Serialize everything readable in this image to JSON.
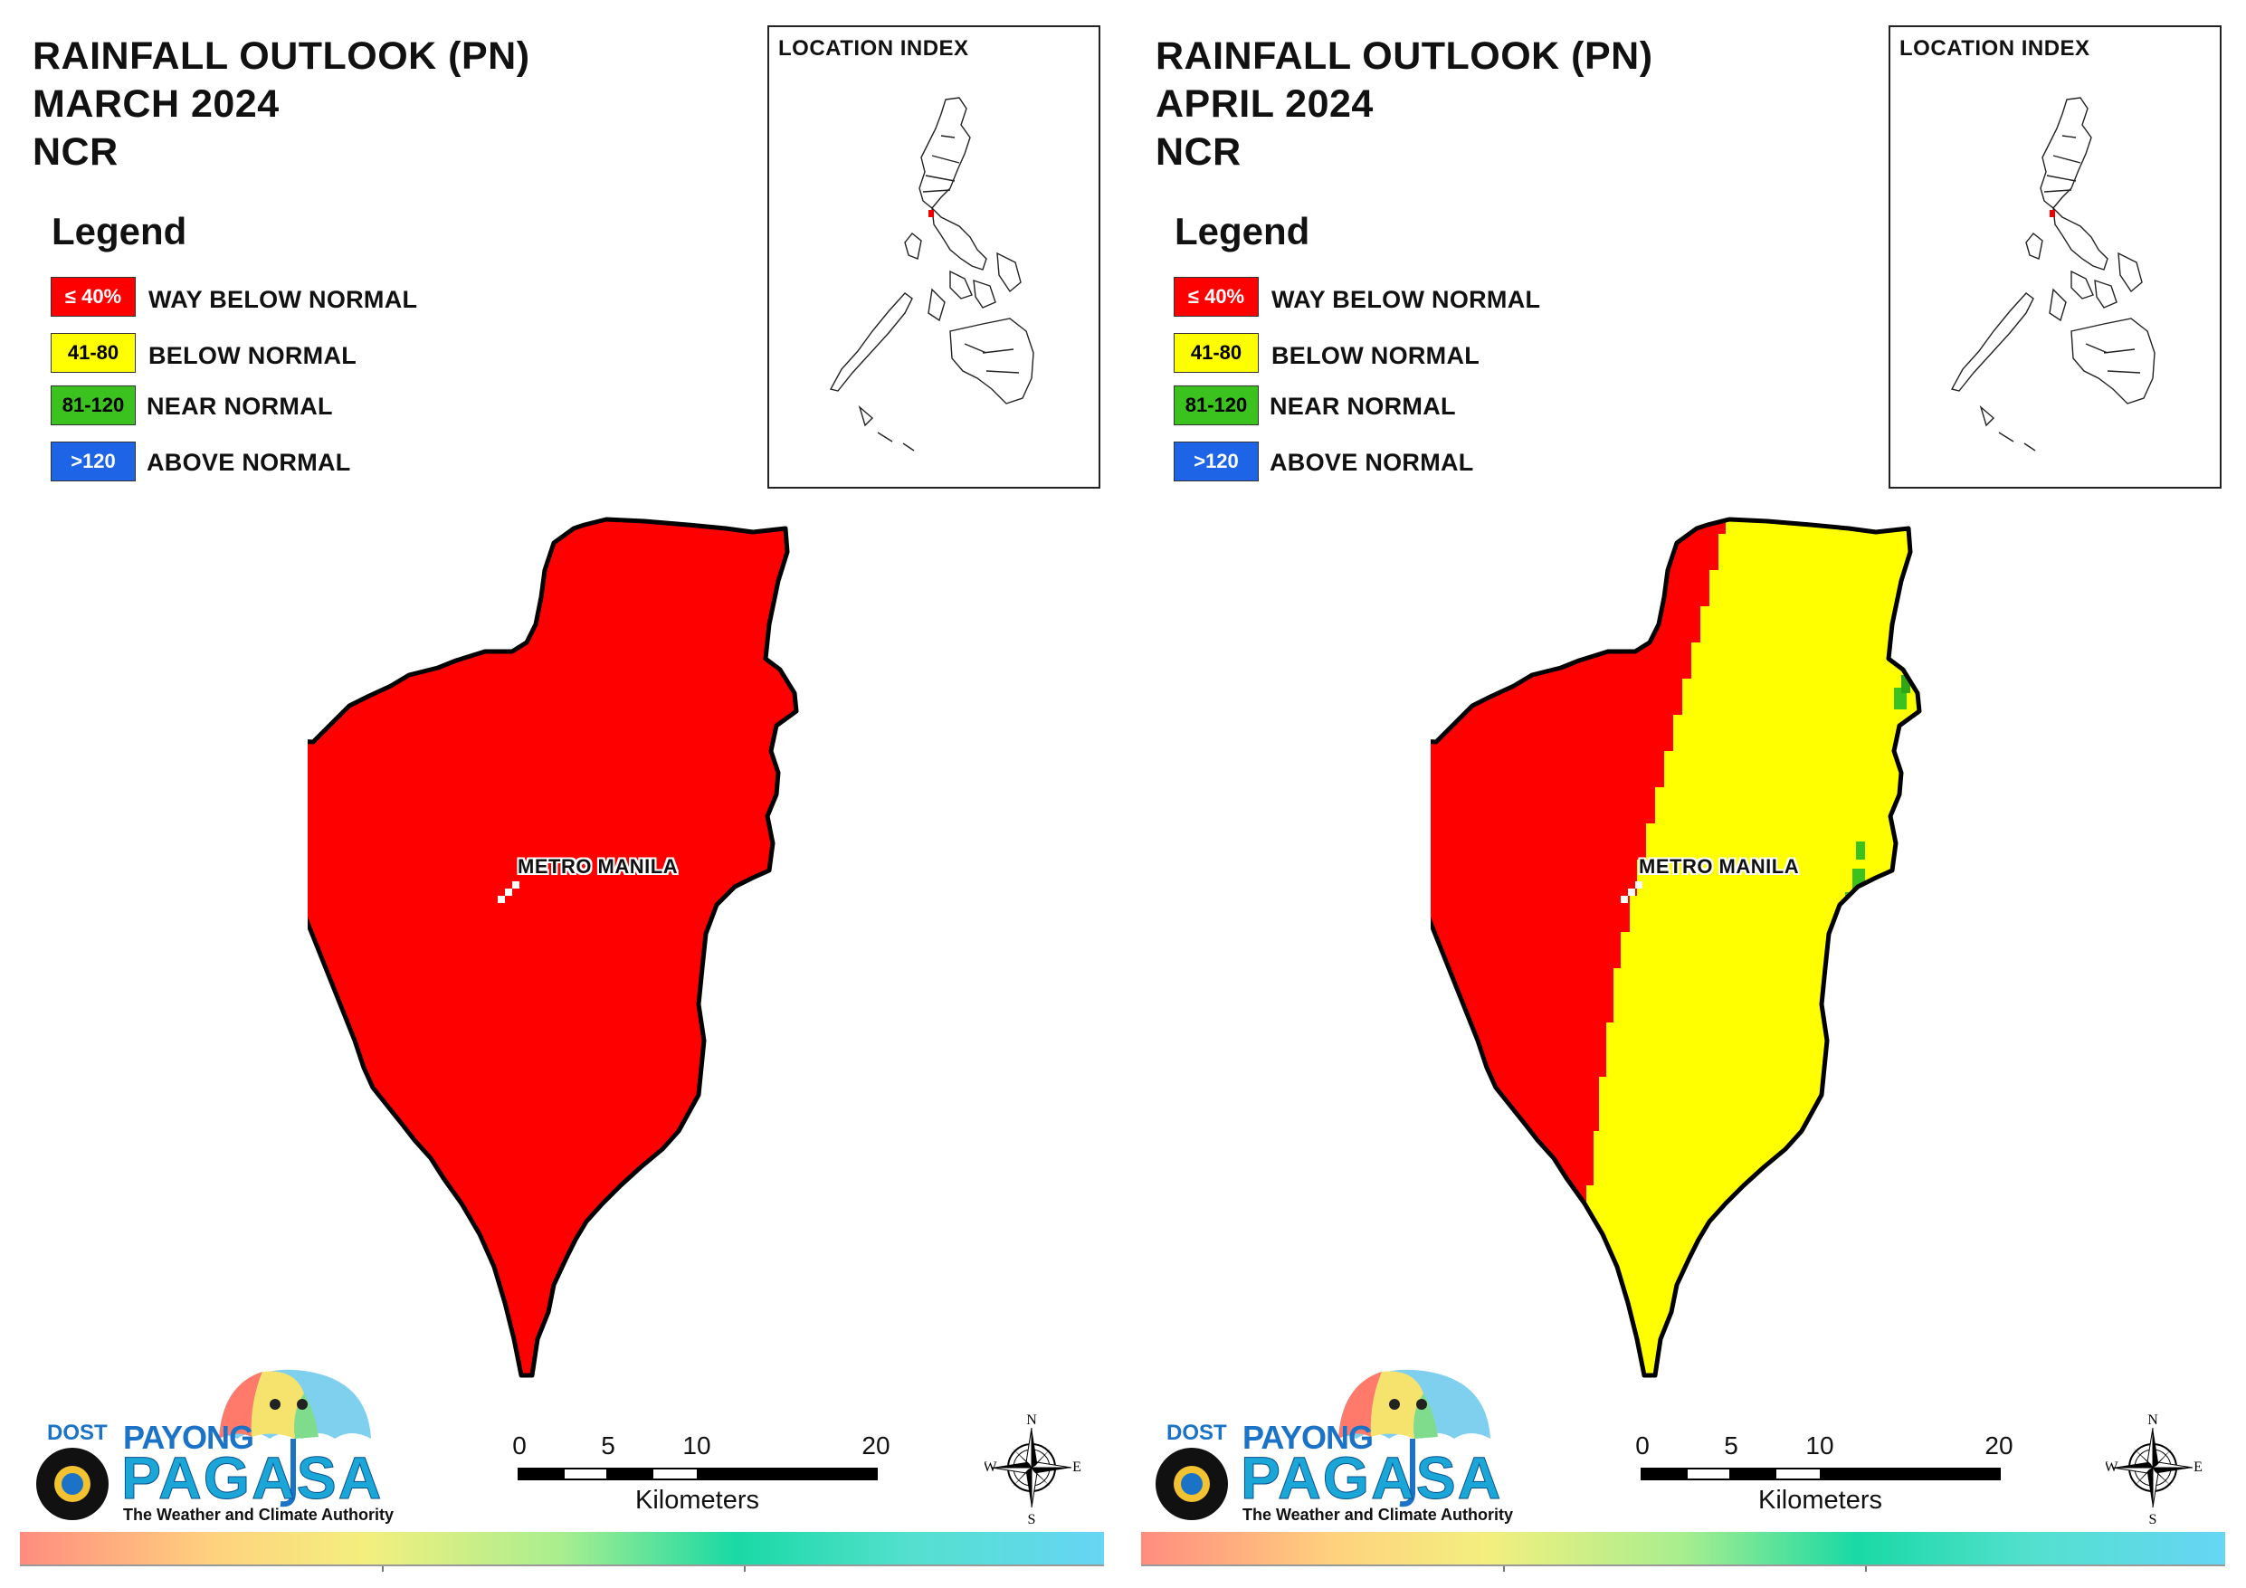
{
  "panels": [
    {
      "title_line1": "RAINFALL OUTLOOK (PN)",
      "title_line2": "MARCH 2024",
      "title_line3": "NCR",
      "legend_title": "Legend",
      "legend": [
        {
          "range": "≤ 40%",
          "label": "WAY BELOW NORMAL",
          "color": "#ff0000",
          "text_color": "#ffffff"
        },
        {
          "range": "41-80",
          "label": "BELOW NORMAL",
          "color": "#ffff00",
          "text_color": "#000000"
        },
        {
          "range": "81-120",
          "label": "NEAR NORMAL",
          "color": "#3cc21e",
          "text_color": "#000000"
        },
        {
          "range": ">120",
          "label": "ABOVE NORMAL",
          "color": "#1e64e6",
          "text_color": "#ffffff"
        }
      ],
      "location_index_title": "LOCATION INDEX",
      "region_label": "METRO MANILA",
      "region_fill": "way below normal",
      "scale_ticks": [
        "0",
        "5",
        "10",
        "20"
      ],
      "scale_unit": "Kilometers",
      "compass": {
        "n": "N",
        "e": "E",
        "s": "S",
        "w": "W"
      },
      "logo": {
        "dost": "DOST",
        "payong": "PAYONG",
        "pagasa": "PAGASA",
        "tagline": "The Weather and Climate Authority"
      }
    },
    {
      "title_line1": "RAINFALL OUTLOOK (PN)",
      "title_line2": "APRIL 2024",
      "title_line3": "NCR",
      "legend_title": "Legend",
      "legend": [
        {
          "range": "≤ 40%",
          "label": "WAY BELOW NORMAL",
          "color": "#ff0000",
          "text_color": "#ffffff"
        },
        {
          "range": "41-80",
          "label": "BELOW NORMAL",
          "color": "#ffff00",
          "text_color": "#000000"
        },
        {
          "range": "81-120",
          "label": "NEAR NORMAL",
          "color": "#3cc21e",
          "text_color": "#000000"
        },
        {
          "range": ">120",
          "label": "ABOVE NORMAL",
          "color": "#1e64e6",
          "text_color": "#ffffff"
        }
      ],
      "location_index_title": "LOCATION INDEX",
      "region_label": "METRO MANILA",
      "region_fill": "way below normal (west), below normal (central/east), near normal (east edge)",
      "scale_ticks": [
        "0",
        "5",
        "10",
        "20"
      ],
      "scale_unit": "Kilometers",
      "compass": {
        "n": "N",
        "e": "E",
        "s": "S",
        "w": "W"
      },
      "logo": {
        "dost": "DOST",
        "payong": "PAYONG",
        "pagasa": "PAGASA",
        "tagline": "The Weather and Climate Authority"
      }
    }
  ],
  "colors": {
    "way_below": "#ff0000",
    "below": "#ffff00",
    "near": "#3cc21e",
    "near_dark": "#2ea617",
    "above": "#1e64e6"
  }
}
